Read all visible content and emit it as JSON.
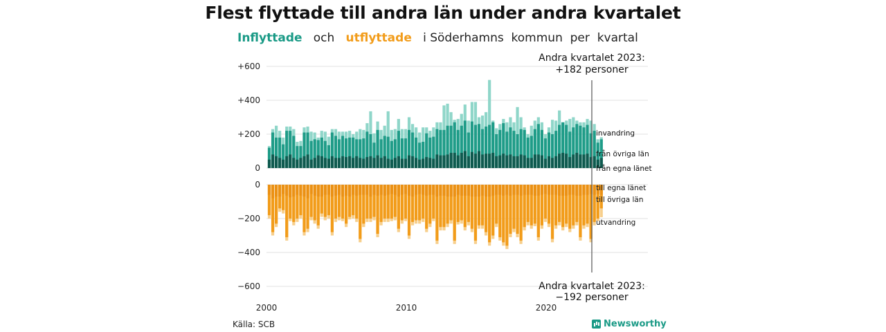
{
  "title": "Flest flyttade till andra län under andra kvartalet",
  "subtitle": {
    "inflow_word": "Inflyttade",
    "and_word": "och",
    "outflow_word": "utflyttade",
    "rest": "i Söderhamns  kommun  per  kvartal"
  },
  "source": "Källa: SCB",
  "logo": "Newsworthy",
  "colors": {
    "inflow_total": "#8fd6c9",
    "inflow_other_counties": "#1f9c88",
    "inflow_own_county": "#0f5a4f",
    "outflow_total": "#f7cf8c",
    "outflow_other_counties": "#f29c1a",
    "outflow_own_county": "#e88a10"
  },
  "chart_data": {
    "type": "bar",
    "stacked": true,
    "x_start": "2000 Q1",
    "x_end": "2023 Q2",
    "xlim": [
      2000,
      2024
    ],
    "x_ticks": [
      "2000",
      "2010",
      "2020"
    ],
    "upper_ylim": [
      0,
      600
    ],
    "upper_ticks": [
      "+600",
      "+400",
      "+200",
      "0"
    ],
    "lower_ylim": [
      -600,
      0
    ],
    "lower_ticks": [
      "0",
      "−200",
      "−400",
      "−600"
    ],
    "grid": true,
    "series_labels": {
      "in_total": "invandring",
      "in_other": "från övriga län",
      "in_own": "från egna länet",
      "out_own": "till egna länet",
      "out_other": "till övriga län",
      "out_total": "utvandring"
    },
    "annotation_top": {
      "line1": "Andra kvartalet 2023:",
      "line2": "+182 personer"
    },
    "annotation_bottom": {
      "line1": "Andra kvartalet 2023:",
      "line2": "−192 personer"
    },
    "inflow": {
      "own_county": [
        50,
        80,
        70,
        60,
        50,
        70,
        80,
        60,
        50,
        60,
        70,
        80,
        50,
        60,
        75,
        70,
        60,
        55,
        70,
        60,
        60,
        70,
        65,
        70,
        60,
        70,
        60,
        55,
        65,
        70,
        60,
        75,
        60,
        70,
        55,
        50,
        60,
        70,
        55,
        55,
        75,
        70,
        60,
        50,
        55,
        65,
        60,
        55,
        80,
        75,
        75,
        80,
        90,
        90,
        75,
        90,
        100,
        70,
        95,
        85,
        100,
        80,
        85,
        85,
        90,
        70,
        75,
        85,
        75,
        80,
        70,
        70,
        80,
        75,
        60,
        60,
        80,
        80,
        75,
        55,
        70,
        60,
        70,
        85,
        90,
        85,
        65,
        80,
        90,
        80,
        80,
        85,
        65,
        70,
        50,
        60
      ],
      "other_counties": [
        70,
        130,
        110,
        120,
        90,
        150,
        140,
        130,
        80,
        70,
        140,
        130,
        110,
        110,
        90,
        110,
        100,
        80,
        140,
        130,
        110,
        120,
        110,
        110,
        120,
        100,
        110,
        120,
        150,
        130,
        90,
        150,
        110,
        120,
        130,
        110,
        110,
        150,
        120,
        120,
        150,
        140,
        120,
        100,
        100,
        140,
        120,
        130,
        150,
        150,
        150,
        170,
        160,
        180,
        150,
        160,
        180,
        140,
        180,
        170,
        160,
        150,
        160,
        170,
        180,
        130,
        150,
        180,
        140,
        160,
        150,
        130,
        150,
        150,
        120,
        130,
        150,
        180,
        150,
        120,
        140,
        140,
        150,
        170,
        180,
        170,
        150,
        160,
        170,
        170,
        160,
        170,
        140,
        150,
        100,
        110
      ],
      "total": [
        130,
        230,
        250,
        220,
        180,
        245,
        245,
        230,
        155,
        160,
        240,
        245,
        215,
        210,
        180,
        220,
        215,
        185,
        230,
        230,
        215,
        215,
        215,
        220,
        200,
        215,
        230,
        225,
        265,
        335,
        205,
        275,
        225,
        250,
        335,
        225,
        230,
        290,
        230,
        230,
        300,
        260,
        240,
        210,
        240,
        240,
        220,
        240,
        270,
        270,
        370,
        380,
        330,
        285,
        290,
        320,
        375,
        280,
        390,
        390,
        300,
        310,
        330,
        520,
        280,
        235,
        260,
        290,
        270,
        300,
        270,
        360,
        300,
        240,
        200,
        250,
        280,
        300,
        270,
        200,
        240,
        285,
        280,
        340,
        270,
        280,
        290,
        300,
        280,
        270,
        270,
        290,
        280,
        260,
        170,
        182
      ]
    },
    "outflow": {
      "own_county": [
        -60,
        -80,
        -70,
        -70,
        -55,
        -65,
        -75,
        -70,
        -60,
        -65,
        -70,
        -80,
        -55,
        -65,
        -70,
        -70,
        -60,
        -60,
        -70,
        -65,
        -60,
        -70,
        -65,
        -70,
        -60,
        -65,
        -60,
        -60,
        -60,
        -70,
        -60,
        -65,
        -60,
        -65,
        -60,
        -55,
        -60,
        -70,
        -60,
        -55,
        -65,
        -70,
        -60,
        -55,
        -60,
        -65,
        -60,
        -60,
        -70,
        -65,
        -65,
        -70,
        -70,
        -70,
        -60,
        -65,
        -65,
        -65,
        -70,
        -70,
        -70,
        -65,
        -70,
        -70,
        -65,
        -60,
        -60,
        -65,
        -60,
        -65,
        -60,
        -60,
        -65,
        -60,
        -60,
        -60,
        -65,
        -65,
        -60,
        -55,
        -60,
        -60,
        -60,
        -65,
        -65,
        -65,
        -60,
        -60,
        -65,
        -65,
        -60,
        -60,
        -55,
        -60,
        -55,
        -60
      ],
      "other_counties": [
        -180,
        -280,
        -230,
        -140,
        -150,
        -310,
        -200,
        -220,
        -200,
        -180,
        -280,
        -260,
        -190,
        -210,
        -240,
        -170,
        -190,
        -180,
        -280,
        -200,
        -190,
        -200,
        -230,
        -190,
        -180,
        -200,
        -320,
        -230,
        -200,
        -200,
        -190,
        -290,
        -220,
        -200,
        -200,
        -200,
        -190,
        -260,
        -210,
        -200,
        -300,
        -220,
        -210,
        -210,
        -200,
        -260,
        -230,
        -200,
        -330,
        -250,
        -250,
        -230,
        -210,
        -330,
        -220,
        -210,
        -250,
        -220,
        -260,
        -330,
        -240,
        -240,
        -280,
        -340,
        -300,
        -230,
        -310,
        -340,
        -360,
        -290,
        -260,
        -290,
        -330,
        -250,
        -220,
        -240,
        -230,
        -310,
        -240,
        -200,
        -230,
        -320,
        -240,
        -220,
        -250,
        -230,
        -260,
        -240,
        -220,
        -310,
        -240,
        -230,
        -320,
        -220,
        -200,
        -140
      ],
      "total": [
        -200,
        -300,
        -250,
        -160,
        -170,
        -330,
        -215,
        -240,
        -220,
        -200,
        -300,
        -280,
        -210,
        -230,
        -260,
        -190,
        -210,
        -200,
        -300,
        -220,
        -210,
        -215,
        -250,
        -205,
        -200,
        -220,
        -340,
        -250,
        -220,
        -220,
        -210,
        -310,
        -240,
        -220,
        -220,
        -215,
        -210,
        -280,
        -230,
        -215,
        -320,
        -240,
        -230,
        -230,
        -220,
        -280,
        -250,
        -215,
        -350,
        -270,
        -270,
        -250,
        -230,
        -350,
        -235,
        -230,
        -270,
        -240,
        -280,
        -350,
        -260,
        -260,
        -300,
        -360,
        -320,
        -250,
        -330,
        -360,
        -380,
        -310,
        -280,
        -310,
        -350,
        -270,
        -240,
        -260,
        -245,
        -330,
        -260,
        -220,
        -250,
        -340,
        -260,
        -240,
        -270,
        -250,
        -280,
        -260,
        -240,
        -330,
        -260,
        -250,
        -340,
        -240,
        -215,
        -192
      ]
    }
  }
}
